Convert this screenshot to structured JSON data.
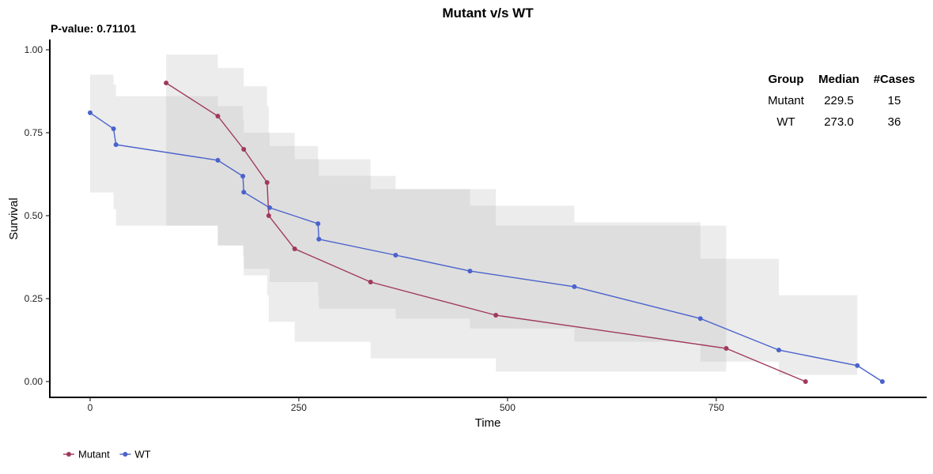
{
  "chart_data": {
    "type": "line",
    "title": "Mutant v/s WT",
    "annotation": "P-value: 0.71101",
    "xlabel": "Time",
    "ylabel": "Survival",
    "xlim": [
      -38,
      990
    ],
    "ylim": [
      -0.05,
      1.03
    ],
    "x_ticks": [
      0,
      250,
      500,
      750
    ],
    "y_ticks": [
      0,
      0.25,
      0.5,
      0.75,
      1.0
    ],
    "x_tick_labels": [
      "0",
      "250",
      "500",
      "750"
    ],
    "y_tick_labels": [
      "0.00",
      "0.25",
      "0.50",
      "0.75",
      "1.00"
    ],
    "grid": false,
    "legend_position": "bottom-left",
    "series": [
      {
        "name": "Mutant",
        "color": "#a03a5a",
        "x": [
          91,
          153,
          184,
          212,
          214,
          245,
          336,
          486,
          762,
          857
        ],
        "y": [
          0.9,
          0.8,
          0.7,
          0.6,
          0.5,
          0.4,
          0.3,
          0.2,
          0.1,
          0.0
        ],
        "ci_band": {
          "x": [
            91,
            153,
            184,
            212,
            214,
            245,
            336,
            486,
            762
          ],
          "upper": [
            0.985,
            0.945,
            0.89,
            0.83,
            0.75,
            0.67,
            0.58,
            0.47,
            0.36
          ],
          "lower": [
            0.47,
            0.41,
            0.32,
            0.26,
            0.18,
            0.12,
            0.07,
            0.03,
            0.005
          ]
        }
      },
      {
        "name": "WT",
        "color": "#4a62cc",
        "x": [
          0,
          28,
          31,
          153,
          183,
          184,
          215,
          273,
          274,
          366,
          455,
          580,
          731,
          825,
          919,
          949
        ],
        "y": [
          0.81,
          0.762,
          0.714,
          0.667,
          0.619,
          0.571,
          0.524,
          0.476,
          0.429,
          0.381,
          0.333,
          0.286,
          0.19,
          0.095,
          0.048,
          0.0
        ],
        "ci_band": {
          "x": [
            0,
            28,
            31,
            153,
            183,
            184,
            215,
            273,
            274,
            366,
            455,
            580,
            731,
            825,
            919
          ],
          "upper": [
            0.925,
            0.895,
            0.86,
            0.83,
            0.79,
            0.75,
            0.71,
            0.67,
            0.62,
            0.58,
            0.53,
            0.48,
            0.37,
            0.26,
            0.2
          ],
          "lower": [
            0.57,
            0.52,
            0.47,
            0.41,
            0.38,
            0.34,
            0.3,
            0.26,
            0.22,
            0.19,
            0.16,
            0.12,
            0.06,
            0.02,
            0.003
          ]
        }
      }
    ],
    "summary_table": {
      "headers": [
        "Group",
        "Median",
        "#Cases"
      ],
      "rows": [
        [
          "Mutant",
          "229.5",
          "15"
        ],
        [
          "WT",
          "273.0",
          "36"
        ]
      ]
    }
  }
}
